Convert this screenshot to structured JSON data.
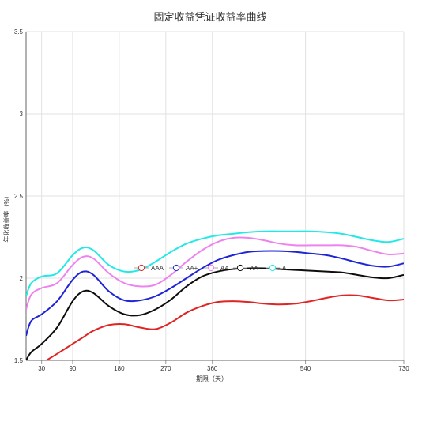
{
  "chart_data": {
    "type": "line",
    "title": "固定收益凭证收益率曲线",
    "xlabel": "期限（天）",
    "ylabel": "年化收益率（%）",
    "x_ticks": [
      30,
      90,
      180,
      270,
      360,
      540,
      730
    ],
    "xlim": [
      0,
      730
    ],
    "ylim": [
      1.5,
      3.5
    ],
    "y_ticks": [
      "1.5",
      "2",
      "2.5",
      "3",
      "3.5"
    ],
    "grid": true,
    "legend_position": "center",
    "x": [
      0,
      10,
      30,
      60,
      90,
      110,
      130,
      160,
      190,
      220,
      250,
      280,
      310,
      340,
      370,
      400,
      430,
      460,
      490,
      520,
      550,
      580,
      610,
      640,
      670,
      700,
      730
    ],
    "series": [
      {
        "name": "AAA",
        "color": "#e02424",
        "values": [
          1.39,
          1.42,
          1.48,
          1.54,
          1.6,
          1.64,
          1.68,
          1.715,
          1.72,
          1.7,
          1.69,
          1.73,
          1.79,
          1.83,
          1.855,
          1.86,
          1.855,
          1.845,
          1.84,
          1.845,
          1.86,
          1.88,
          1.895,
          1.895,
          1.88,
          1.865,
          1.87
        ]
      },
      {
        "name": "AA+",
        "color": "#1f24d6",
        "values": [
          1.65,
          1.74,
          1.78,
          1.86,
          1.99,
          2.04,
          2.02,
          1.92,
          1.865,
          1.865,
          1.89,
          1.94,
          2.0,
          2.06,
          2.11,
          2.14,
          2.16,
          2.165,
          2.165,
          2.16,
          2.15,
          2.14,
          2.12,
          2.095,
          2.075,
          2.07,
          2.09
        ]
      },
      {
        "name": "AA",
        "color": "#ee82ee",
        "values": [
          1.81,
          1.9,
          1.94,
          1.97,
          2.08,
          2.13,
          2.12,
          2.03,
          1.97,
          1.95,
          1.96,
          2.02,
          2.1,
          2.17,
          2.22,
          2.245,
          2.245,
          2.23,
          2.21,
          2.2,
          2.2,
          2.2,
          2.2,
          2.19,
          2.165,
          2.145,
          2.15
        ]
      },
      {
        "name": "AA-",
        "color": "#0d0d0d",
        "values": [
          1.5,
          1.55,
          1.6,
          1.7,
          1.86,
          1.92,
          1.91,
          1.83,
          1.78,
          1.775,
          1.81,
          1.87,
          1.95,
          2.01,
          2.04,
          2.055,
          2.06,
          2.06,
          2.055,
          2.05,
          2.045,
          2.04,
          2.035,
          2.02,
          2.005,
          2.0,
          2.02
        ]
      },
      {
        "name": "A",
        "color": "#22e8e8",
        "values": [
          1.89,
          1.97,
          2.01,
          2.03,
          2.14,
          2.185,
          2.17,
          2.08,
          2.04,
          2.05,
          2.1,
          2.16,
          2.21,
          2.24,
          2.26,
          2.27,
          2.28,
          2.285,
          2.285,
          2.285,
          2.285,
          2.28,
          2.27,
          2.25,
          2.23,
          2.22,
          2.24
        ]
      }
    ]
  }
}
